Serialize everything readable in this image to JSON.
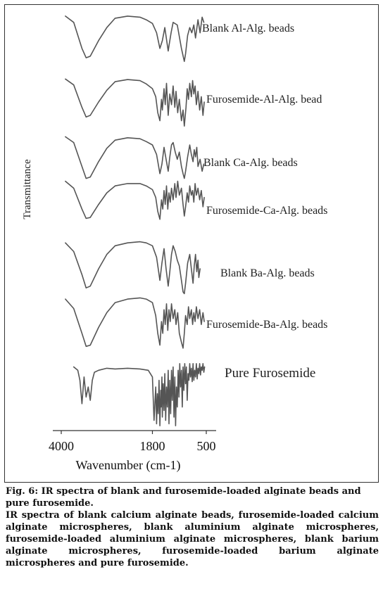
{
  "chart_data": {
    "type": "line",
    "xlabel": "Wavenumber (cm-1)",
    "ylabel": "Transmittance",
    "xlim": [
      4000,
      500
    ],
    "x_ticks": [
      4000,
      1800,
      500
    ],
    "x_tick_labels": [
      "4000",
      "1800",
      "500"
    ],
    "legend": "labels placed at the right end of each trace",
    "grid": false,
    "series": [
      {
        "name": "Blank Al-Alg. beads",
        "x": [
          3900,
          3700,
          3500,
          3400,
          3300,
          3100,
          2900,
          2700,
          2400,
          2100,
          1950,
          1800,
          1700,
          1620,
          1560,
          1500,
          1420,
          1400,
          1350,
          1300,
          1200,
          1100,
          1030,
          1000,
          950,
          900,
          850,
          800,
          760,
          700,
          650,
          600,
          560
        ],
        "y": [
          0.92,
          0.8,
          0.3,
          0.12,
          0.15,
          0.45,
          0.7,
          0.88,
          0.92,
          0.9,
          0.85,
          0.78,
          0.6,
          0.3,
          0.45,
          0.7,
          0.25,
          0.35,
          0.6,
          0.8,
          0.75,
          0.3,
          0.05,
          0.2,
          0.55,
          0.7,
          0.6,
          0.75,
          0.5,
          0.85,
          0.6,
          0.9,
          0.8
        ]
      },
      {
        "name": "Furosemide-Al-Alg. bead",
        "x": [
          3900,
          3700,
          3500,
          3400,
          3300,
          3100,
          2900,
          2700,
          2400,
          2100,
          1950,
          1800,
          1720,
          1670,
          1620,
          1580,
          1560,
          1520,
          1490,
          1460,
          1420,
          1380,
          1340,
          1300,
          1260,
          1230,
          1190,
          1150,
          1100,
          1060,
          1030,
          990,
          960,
          930,
          900,
          860,
          830,
          800,
          770,
          740,
          700,
          660,
          620,
          580,
          550
        ],
        "y": [
          0.93,
          0.82,
          0.4,
          0.22,
          0.25,
          0.5,
          0.72,
          0.88,
          0.92,
          0.9,
          0.84,
          0.75,
          0.6,
          0.3,
          0.15,
          0.55,
          0.35,
          0.75,
          0.45,
          0.85,
          0.25,
          0.65,
          0.45,
          0.8,
          0.4,
          0.7,
          0.3,
          0.55,
          0.15,
          0.35,
          0.05,
          0.4,
          0.75,
          0.55,
          0.85,
          0.6,
          0.9,
          0.65,
          0.8,
          0.45,
          0.7,
          0.35,
          0.6,
          0.25,
          0.5
        ]
      },
      {
        "name": "Blank Ca-Alg. beads",
        "x": [
          3900,
          3700,
          3500,
          3400,
          3300,
          3100,
          2900,
          2700,
          2400,
          2100,
          1950,
          1800,
          1700,
          1620,
          1570,
          1520,
          1470,
          1420,
          1380,
          1340,
          1300,
          1250,
          1200,
          1150,
          1100,
          1060,
          1030,
          1000,
          950,
          900,
          860,
          820,
          790,
          760,
          730,
          700,
          650,
          600,
          560
        ],
        "y": [
          0.92,
          0.8,
          0.3,
          0.05,
          0.08,
          0.4,
          0.68,
          0.85,
          0.9,
          0.88,
          0.82,
          0.75,
          0.55,
          0.15,
          0.35,
          0.7,
          0.45,
          0.2,
          0.5,
          0.75,
          0.8,
          0.6,
          0.45,
          0.6,
          0.3,
          0.15,
          0.05,
          0.2,
          0.5,
          0.75,
          0.55,
          0.4,
          0.65,
          0.5,
          0.7,
          0.3,
          0.45,
          0.2,
          0.35
        ]
      },
      {
        "name": "Furosemide-Ca-Alg. beads",
        "x": [
          3900,
          3700,
          3500,
          3400,
          3300,
          3100,
          2900,
          2700,
          2400,
          2100,
          1950,
          1800,
          1720,
          1670,
          1620,
          1580,
          1550,
          1520,
          1490,
          1460,
          1430,
          1400,
          1370,
          1340,
          1300,
          1260,
          1230,
          1190,
          1150,
          1100,
          1060,
          1030,
          1000,
          960,
          930,
          900,
          860,
          830,
          800,
          770,
          740,
          700,
          660,
          620,
          580,
          550
        ],
        "y": [
          0.9,
          0.75,
          0.3,
          0.1,
          0.12,
          0.4,
          0.65,
          0.8,
          0.85,
          0.85,
          0.8,
          0.72,
          0.55,
          0.25,
          0.08,
          0.5,
          0.3,
          0.7,
          0.4,
          0.8,
          0.3,
          0.65,
          0.45,
          0.75,
          0.5,
          0.85,
          0.55,
          0.9,
          0.6,
          0.75,
          0.4,
          0.15,
          0.35,
          0.65,
          0.45,
          0.8,
          0.6,
          0.7,
          0.45,
          0.85,
          0.6,
          0.75,
          0.5,
          0.7,
          0.35,
          0.55
        ]
      },
      {
        "name": "Blank Ba-Alg. beads",
        "x": [
          3900,
          3700,
          3500,
          3400,
          3300,
          3100,
          2900,
          2700,
          2400,
          2100,
          1950,
          1800,
          1700,
          1620,
          1570,
          1520,
          1470,
          1420,
          1380,
          1340,
          1300,
          1250,
          1200,
          1150,
          1100,
          1060,
          1030,
          1000,
          950,
          900,
          860,
          820,
          790,
          760,
          730,
          700,
          680,
          650
        ],
        "y": [
          0.9,
          0.75,
          0.35,
          0.12,
          0.15,
          0.45,
          0.7,
          0.85,
          0.9,
          0.92,
          0.9,
          0.85,
          0.65,
          0.25,
          0.55,
          0.8,
          0.45,
          0.15,
          0.4,
          0.7,
          0.85,
          0.75,
          0.6,
          0.5,
          0.25,
          0.05,
          0.02,
          0.2,
          0.55,
          0.7,
          0.45,
          0.2,
          0.5,
          0.7,
          0.4,
          0.6,
          0.3,
          0.45
        ]
      },
      {
        "name": "Furosemide-Ba-Alg. beads",
        "x": [
          3900,
          3700,
          3500,
          3400,
          3300,
          3100,
          2900,
          2700,
          2400,
          2100,
          1950,
          1800,
          1720,
          1670,
          1620,
          1580,
          1550,
          1520,
          1490,
          1460,
          1430,
          1400,
          1370,
          1340,
          1300,
          1260,
          1230,
          1190,
          1150,
          1100,
          1060,
          1030,
          1000,
          960,
          930,
          900,
          860,
          830,
          800,
          770,
          740,
          700,
          660,
          620,
          580,
          550
        ],
        "y": [
          0.88,
          0.72,
          0.3,
          0.08,
          0.1,
          0.4,
          0.65,
          0.82,
          0.88,
          0.9,
          0.88,
          0.82,
          0.6,
          0.3,
          0.1,
          0.5,
          0.3,
          0.7,
          0.45,
          0.8,
          0.35,
          0.7,
          0.5,
          0.8,
          0.55,
          0.7,
          0.45,
          0.65,
          0.3,
          0.15,
          0.05,
          0.3,
          0.6,
          0.45,
          0.75,
          0.55,
          0.7,
          0.45,
          0.65,
          0.5,
          0.75,
          0.55,
          0.7,
          0.45,
          0.65,
          0.5
        ]
      },
      {
        "name": "Pure Furosemide",
        "x": [
          3700,
          3600,
          3550,
          3500,
          3450,
          3400,
          3350,
          3300,
          3250,
          3200,
          3100,
          2900,
          2700,
          2400,
          2100,
          1900,
          1800,
          1760,
          1720,
          1700,
          1680,
          1660,
          1640,
          1620,
          1600,
          1590,
          1570,
          1560,
          1540,
          1520,
          1500,
          1480,
          1460,
          1440,
          1420,
          1400,
          1380,
          1360,
          1340,
          1320,
          1300,
          1280,
          1260,
          1240,
          1220,
          1200,
          1180,
          1160,
          1140,
          1120,
          1100,
          1080,
          1060,
          1040,
          1020,
          1000,
          980,
          960,
          940,
          920,
          900,
          880,
          860,
          840,
          820,
          800,
          780,
          760,
          740,
          720,
          700,
          680,
          660,
          640,
          620,
          600,
          580,
          560,
          540
        ],
        "y": [
          0.9,
          0.85,
          0.7,
          0.35,
          0.75,
          0.45,
          0.6,
          0.4,
          0.7,
          0.82,
          0.85,
          0.88,
          0.87,
          0.88,
          0.87,
          0.85,
          0.75,
          0.1,
          0.6,
          0.05,
          0.5,
          0.2,
          0.7,
          0.02,
          0.55,
          0.3,
          0.75,
          0.15,
          0.65,
          0.25,
          0.8,
          0.1,
          0.6,
          0.3,
          0.85,
          0.05,
          0.7,
          0.2,
          0.85,
          0.4,
          0.9,
          0.15,
          0.75,
          0.02,
          0.6,
          0.3,
          0.85,
          0.45,
          0.95,
          0.6,
          0.85,
          0.3,
          0.9,
          0.55,
          0.95,
          0.65,
          0.9,
          0.4,
          0.8,
          0.7,
          0.95,
          0.75,
          0.88,
          0.68,
          0.95,
          0.7,
          0.85,
          0.75,
          0.95,
          0.72,
          0.88,
          0.8,
          0.95,
          0.78,
          0.9,
          0.85,
          0.95,
          0.82,
          0.9
        ]
      }
    ]
  },
  "caption": {
    "title": "Fig. 6: IR spectra of blank and furosemide-loaded alginate beads and pure furosemide.",
    "body": "IR spectra of blank calcium alginate beads, furosemide-loaded calcium alginate microspheres, blank aluminium alginate microspheres, furosemide-loaded aluminium alginate microspheres, blank barium alginate microspheres, furosemide-loaded barium alginate microspheres and pure furosemide."
  }
}
